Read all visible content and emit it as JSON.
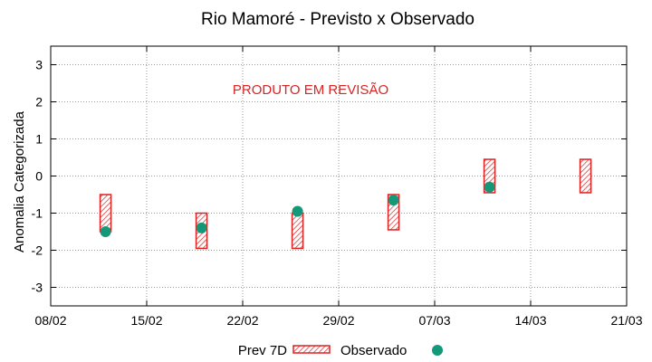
{
  "chart_data": {
    "type": "scatter",
    "title": "Rio Mamoré - Previsto x Observado",
    "ylabel": "Anomalia Categorizada",
    "xlabel": "",
    "annotation": "PRODUTO EM REVISÃO",
    "x_ticks": [
      "08/02",
      "15/02",
      "22/02",
      "29/02",
      "07/03",
      "14/03",
      "21/03"
    ],
    "x_range": [
      "08/02",
      "21/03"
    ],
    "ylim": [
      -3.5,
      3.5
    ],
    "y_ticks": [
      -3,
      -2,
      -1,
      0,
      1,
      2,
      3
    ],
    "grid": true,
    "legend_position": "bottom",
    "series": [
      {
        "name": "Prev 7D",
        "kind": "range-box",
        "color": "#dd2222",
        "points": [
          {
            "date": "12/02",
            "low": -1.5,
            "high": -0.5
          },
          {
            "date": "19/02",
            "low": -1.95,
            "high": -1.0
          },
          {
            "date": "26/02",
            "low": -1.95,
            "high": -1.0
          },
          {
            "date": "04/03",
            "low": -1.45,
            "high": -0.5
          },
          {
            "date": "11/03",
            "low": -0.45,
            "high": 0.45
          },
          {
            "date": "18/03",
            "low": -0.45,
            "high": 0.45
          }
        ]
      },
      {
        "name": "Observado",
        "kind": "marker",
        "color": "#13997a",
        "points": [
          {
            "date": "12/02",
            "value": -1.5
          },
          {
            "date": "19/02",
            "value": -1.4
          },
          {
            "date": "26/02",
            "value": -0.95
          },
          {
            "date": "04/03",
            "value": -0.65
          },
          {
            "date": "11/03",
            "value": -0.3
          }
        ]
      }
    ]
  }
}
